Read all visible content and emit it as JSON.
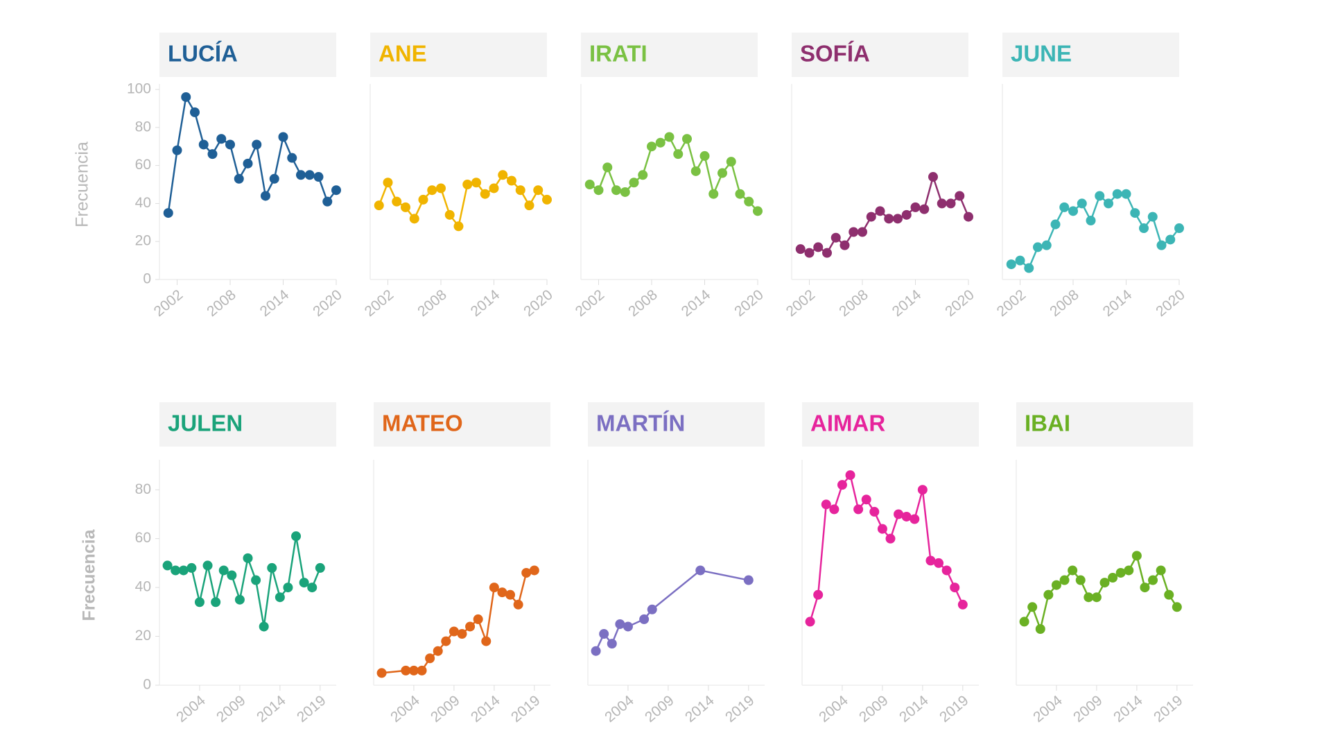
{
  "chart_data": [
    {
      "type": "line",
      "title": "LUCÍA",
      "ylabel": "Frecuencia",
      "color": "#1f5f96",
      "x": [
        2001,
        2002,
        2003,
        2004,
        2005,
        2006,
        2007,
        2008,
        2009,
        2010,
        2011,
        2012,
        2013,
        2014,
        2015,
        2016,
        2017,
        2018,
        2019,
        2020
      ],
      "values": [
        35,
        68,
        96,
        88,
        71,
        66,
        74,
        71,
        53,
        61,
        71,
        44,
        53,
        75,
        64,
        55,
        55,
        54,
        41,
        47
      ],
      "xlim": [
        2000,
        2020
      ],
      "xticks": [
        2002,
        2008,
        2014,
        2020
      ],
      "ylim": [
        0,
        100
      ],
      "yticks": [
        0,
        20,
        40,
        60,
        80,
        100
      ]
    },
    {
      "type": "line",
      "title": "ANE",
      "color": "#f0b400",
      "x": [
        2001,
        2002,
        2003,
        2004,
        2005,
        2006,
        2007,
        2008,
        2009,
        2010,
        2011,
        2012,
        2013,
        2014,
        2015,
        2016,
        2017,
        2018,
        2019,
        2020
      ],
      "values": [
        39,
        51,
        41,
        38,
        32,
        42,
        47,
        48,
        34,
        28,
        50,
        51,
        45,
        48,
        55,
        52,
        47,
        39,
        47,
        42
      ],
      "xlim": [
        2000,
        2020
      ],
      "xticks": [
        2002,
        2008,
        2014,
        2020
      ],
      "ylim": [
        0,
        100
      ]
    },
    {
      "type": "line",
      "title": "IRATI",
      "color": "#7ac143",
      "x": [
        2001,
        2002,
        2003,
        2004,
        2005,
        2006,
        2007,
        2008,
        2009,
        2010,
        2011,
        2012,
        2013,
        2014,
        2015,
        2016,
        2017,
        2018,
        2019,
        2020
      ],
      "values": [
        50,
        47,
        59,
        47,
        46,
        51,
        55,
        70,
        72,
        75,
        66,
        74,
        57,
        65,
        45,
        56,
        62,
        45,
        41,
        36
      ],
      "xlim": [
        2000,
        2020
      ],
      "xticks": [
        2002,
        2008,
        2014,
        2020
      ],
      "ylim": [
        0,
        100
      ]
    },
    {
      "type": "line",
      "title": "SOFÍA",
      "color": "#8e2f6e",
      "x": [
        2001,
        2002,
        2003,
        2004,
        2005,
        2006,
        2007,
        2008,
        2009,
        2010,
        2011,
        2012,
        2013,
        2014,
        2015,
        2016,
        2017,
        2018,
        2019,
        2020
      ],
      "values": [
        16,
        14,
        17,
        14,
        22,
        18,
        25,
        25,
        33,
        36,
        32,
        32,
        34,
        38,
        37,
        54,
        40,
        40,
        44,
        33
      ],
      "xlim": [
        2000,
        2020
      ],
      "xticks": [
        2002,
        2008,
        2014,
        2020
      ],
      "ylim": [
        0,
        100
      ]
    },
    {
      "type": "line",
      "title": "JUNE",
      "color": "#3cb5b5",
      "x": [
        2001,
        2002,
        2003,
        2004,
        2005,
        2006,
        2007,
        2008,
        2009,
        2010,
        2011,
        2012,
        2013,
        2014,
        2015,
        2016,
        2017,
        2018,
        2019,
        2020
      ],
      "values": [
        8,
        10,
        6,
        17,
        18,
        29,
        38,
        36,
        40,
        31,
        44,
        40,
        45,
        45,
        35,
        27,
        33,
        18,
        21,
        27
      ],
      "xlim": [
        2000,
        2020
      ],
      "xticks": [
        2002,
        2008,
        2014,
        2020
      ],
      "ylim": [
        0,
        100
      ]
    },
    {
      "type": "line",
      "title": "JULEN",
      "ylabel": "Frecuencia",
      "color": "#1aa37a",
      "x": [
        2000,
        2001,
        2002,
        2003,
        2004,
        2005,
        2006,
        2007,
        2008,
        2009,
        2010,
        2011,
        2012,
        2013,
        2014,
        2015,
        2016,
        2017,
        2018,
        2019
      ],
      "values": [
        49,
        47,
        47,
        48,
        34,
        49,
        34,
        47,
        45,
        35,
        52,
        43,
        24,
        48,
        36,
        40,
        61,
        42,
        40,
        48
      ],
      "xlim": [
        1999,
        2021
      ],
      "xticks": [
        2004,
        2009,
        2014,
        2019
      ],
      "ylim": [
        0,
        90
      ],
      "yticks": [
        0,
        20,
        40,
        60,
        80
      ]
    },
    {
      "type": "line",
      "title": "MATEO",
      "color": "#e0661a",
      "x": [
        2000,
        2003,
        2004,
        2005,
        2006,
        2007,
        2008,
        2009,
        2010,
        2011,
        2012,
        2013,
        2014,
        2015,
        2016,
        2017,
        2018,
        2019
      ],
      "values": [
        5,
        6,
        6,
        6,
        11,
        14,
        18,
        22,
        21,
        24,
        27,
        18,
        40,
        38,
        37,
        33,
        46,
        47
      ],
      "xlim": [
        1999,
        2021
      ],
      "xticks": [
        2004,
        2009,
        2014,
        2019
      ],
      "ylim": [
        0,
        90
      ]
    },
    {
      "type": "line",
      "title": "MARTÍN",
      "color": "#7b6fc2",
      "x": [
        2000,
        2001,
        2002,
        2003,
        2004,
        2006,
        2007,
        2013,
        2019
      ],
      "values": [
        14,
        21,
        17,
        25,
        24,
        27,
        31,
        47,
        43
      ],
      "xlim": [
        1999,
        2021
      ],
      "xticks": [
        2004,
        2009,
        2014,
        2019
      ],
      "ylim": [
        0,
        90
      ]
    },
    {
      "type": "line",
      "title": "AIMAR",
      "color": "#e6249c",
      "x": [
        2000,
        2001,
        2002,
        2003,
        2004,
        2005,
        2006,
        2007,
        2008,
        2009,
        2010,
        2011,
        2012,
        2013,
        2014,
        2015,
        2016,
        2017,
        2018,
        2019
      ],
      "values": [
        26,
        37,
        74,
        72,
        82,
        86,
        72,
        76,
        71,
        64,
        60,
        70,
        69,
        68,
        80,
        51,
        50,
        47,
        40,
        33
      ],
      "xlim": [
        1999,
        2021
      ],
      "xticks": [
        2004,
        2009,
        2014,
        2019
      ],
      "ylim": [
        0,
        90
      ]
    },
    {
      "type": "line",
      "title": "IBAI",
      "color": "#6ab023",
      "x": [
        2000,
        2001,
        2002,
        2003,
        2004,
        2005,
        2006,
        2007,
        2008,
        2009,
        2010,
        2011,
        2012,
        2013,
        2014,
        2015,
        2016,
        2017,
        2018,
        2019
      ],
      "values": [
        26,
        32,
        23,
        37,
        41,
        43,
        47,
        43,
        36,
        36,
        42,
        44,
        46,
        47,
        53,
        40,
        43,
        47,
        37,
        32
      ],
      "xlim": [
        1999,
        2021
      ],
      "xticks": [
        2004,
        2009,
        2014,
        2019
      ],
      "ylim": [
        0,
        90
      ]
    }
  ]
}
